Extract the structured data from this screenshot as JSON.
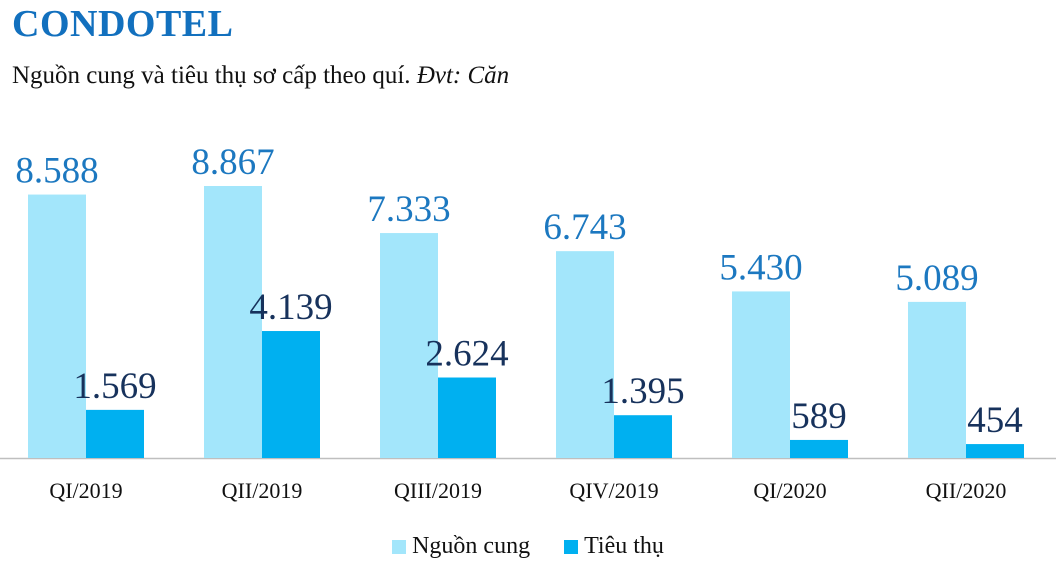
{
  "header": {
    "title": "CONDOTEL",
    "subtitle_main": "Nguồn cung và tiêu thụ sơ cấp theo quí.",
    "subtitle_unit": "Đvt: Căn"
  },
  "chart_data": {
    "type": "bar",
    "categories": [
      "QI/2019",
      "QII/2019",
      "QIII/2019",
      "QIV/2019",
      "QI/2020",
      "QII/2020"
    ],
    "series": [
      {
        "name": "Nguồn cung",
        "color": "#a3e6fb",
        "label_color": "#1c78c0",
        "values": [
          8588,
          8867,
          7333,
          6743,
          5430,
          5089
        ],
        "labels": [
          "8.588",
          "8.867",
          "7.333",
          "6.743",
          "5.430",
          "5.089"
        ]
      },
      {
        "name": "Tiêu thụ",
        "color": "#00b0f0",
        "label_color": "#17325c",
        "values": [
          1569,
          4139,
          2624,
          1395,
          589,
          454
        ],
        "labels": [
          "1.569",
          "4.139",
          "2.624",
          "1.395",
          "589",
          "454"
        ]
      }
    ],
    "ylim": [
      0,
      8867
    ],
    "grid": false,
    "legend_position": "bottom"
  }
}
